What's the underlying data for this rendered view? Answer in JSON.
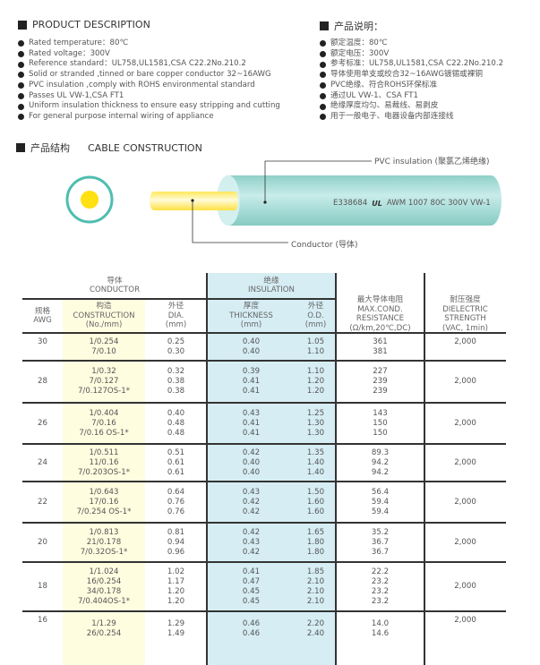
{
  "description_en": {
    "title": "PRODUCT DESCRIPTION",
    "items": [
      "Rated temperature：80℃",
      "Rated voltage：300V",
      "Reference standard：UL758,UL1581,CSA C22.2No.210.2",
      "Solid or stranded ,tinned or bare copper conductor 32~16AWG",
      "PVC insulation ,comply with ROHS environmental standard",
      "Passes UL VW-1,CSA FT1",
      "Uniform insulation thickness to ensure easy stripping and cutting",
      "For general purpose internal wiring of appliance"
    ]
  },
  "description_cn": {
    "title": "产品说明：",
    "items": [
      "额定温度：80℃",
      "额定电压：300V",
      "参考标准：UL758,UL1581,CSA C22.2No.210.2",
      "导体使用单支或绞合32~16AWG镀锡或裸铜",
      "PVC绝缘、符合ROHS环保标准",
      "通过UL VW-1、CSA FT1",
      "绝缘厚度均匀、易裁线、易剥皮",
      "用于一般电子、电器设备内部连接线"
    ]
  },
  "construction": {
    "title_cn": "产品结构",
    "title_en": "CABLE CONSTRUCTION",
    "insulation_label": "PVC insulation (聚氯乙烯绝缘)",
    "conductor_label": "Conductor (导体)",
    "print_code": "E338684",
    "print_text": "AWM 1007 80C 300V VW-1",
    "ul_mark": "UL",
    "colors": {
      "insulation": "#9fd9d3",
      "conductor": "#ffe020"
    }
  },
  "table": {
    "group_conductor": [
      "导体",
      "CONDUCTOR"
    ],
    "group_insulation": [
      "绝缘",
      "INSULATION"
    ],
    "headers": {
      "awg": [
        "规格",
        "AWG"
      ],
      "construction": [
        "构造",
        "CONSTRUCTION",
        "(No./mm)"
      ],
      "dia": [
        "外径",
        "DIA.",
        "(mm)"
      ],
      "thickness": [
        "厚度",
        "THICKNESS",
        "(mm)"
      ],
      "od": [
        "外径",
        "O.D.",
        "(mm)"
      ],
      "resistance": [
        "最大导体电阻",
        "MAX.COND.",
        "RESISTANCE",
        "(Ω/km,20℃,DC)"
      ],
      "dielectric": [
        "耐压强度",
        "DIELECTRIC",
        "STRENGTH",
        "(VAC, 1min)"
      ]
    },
    "rows": [
      {
        "awg": "30",
        "construction": [
          "1/0.254",
          "7/0.10"
        ],
        "dia": [
          "0.25",
          "0.30"
        ],
        "thickness": [
          "0.40",
          "0.40"
        ],
        "od": [
          "1.05",
          "1.10"
        ],
        "resistance": [
          "361",
          "381"
        ],
        "dielectric": "2,000"
      },
      {
        "awg": "28",
        "construction": [
          "1/0.32",
          "7/0.127",
          "7/0.127OS-1*"
        ],
        "dia": [
          "0.32",
          "0.38",
          "0.38"
        ],
        "thickness": [
          "0.39",
          "0.41",
          "0.41"
        ],
        "od": [
          "1.10",
          "1.20",
          "1.20"
        ],
        "resistance": [
          "227",
          "239",
          "239"
        ],
        "dielectric": "2,000"
      },
      {
        "awg": "26",
        "construction": [
          "1/0.404",
          "7/0.16",
          "7/0.16 OS-1*"
        ],
        "dia": [
          "0.40",
          "0.48",
          "0.48"
        ],
        "thickness": [
          "0.43",
          "0.41",
          "0.41"
        ],
        "od": [
          "1.25",
          "1.30",
          "1.30"
        ],
        "resistance": [
          "143",
          "150",
          "150"
        ],
        "dielectric": "2,000"
      },
      {
        "awg": "24",
        "construction": [
          "1/0.511",
          "11/0.16",
          "7/0.203OS-1*"
        ],
        "dia": [
          "0.51",
          "0.61",
          "0.61"
        ],
        "thickness": [
          "0.42",
          "0.40",
          "0.40"
        ],
        "od": [
          "1.35",
          "1.40",
          "1.40"
        ],
        "resistance": [
          "89.3",
          "94.2",
          "94.2"
        ],
        "dielectric": "2,000"
      },
      {
        "awg": "22",
        "construction": [
          "1/0.643",
          "17/0.16",
          "7/0.254 OS-1*"
        ],
        "dia": [
          "0.64",
          "0.76",
          "0.76"
        ],
        "thickness": [
          "0.43",
          "0.42",
          "0.42"
        ],
        "od": [
          "1.50",
          "1.60",
          "1.60"
        ],
        "resistance": [
          "56.4",
          "59.4",
          "59.4"
        ],
        "dielectric": "2,000"
      },
      {
        "awg": "20",
        "construction": [
          "1/0.813",
          "21/0.178",
          "7/0.32OS-1*"
        ],
        "dia": [
          "0.81",
          "0.94",
          "0.96"
        ],
        "thickness": [
          "0.42",
          "0.43",
          "0.42"
        ],
        "od": [
          "1.65",
          "1.80",
          "1.80"
        ],
        "resistance": [
          "35.2",
          "36.7",
          "36.7"
        ],
        "dielectric": "2,000"
      },
      {
        "awg": "18",
        "construction": [
          "1/1.024",
          "16/0.254",
          "34/0.178",
          "7/0.404OS-1*"
        ],
        "dia": [
          "1.02",
          "1.17",
          "1.20",
          "1.20"
        ],
        "thickness": [
          "0.41",
          "0.47",
          "0.45",
          "0.45"
        ],
        "od": [
          "1.85",
          "2.10",
          "2.10",
          "2.10"
        ],
        "resistance": [
          "22.2",
          "23.2",
          "23.2",
          "23.2"
        ],
        "dielectric": "2,000"
      },
      {
        "awg": "16",
        "construction": [
          "1/1.29",
          "26/0.254"
        ],
        "dia": [
          "1.29",
          "1.49"
        ],
        "thickness": [
          "0.46",
          "0.46"
        ],
        "od": [
          "2.20",
          "2.40"
        ],
        "resistance": [
          "14.0",
          "14.6"
        ],
        "dielectric": "2,000"
      }
    ]
  }
}
